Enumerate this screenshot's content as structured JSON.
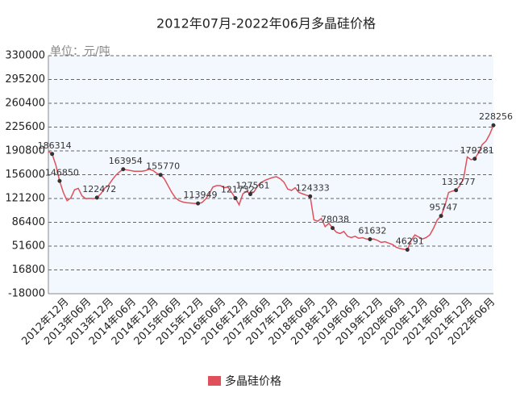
{
  "chart_data": {
    "type": "line",
    "title": "2012年07月-2022年06月多晶硅价格",
    "y_unit": "单位：元/吨",
    "categories": [
      null,
      null,
      null,
      null,
      null,
      "2012年12月",
      null,
      null,
      null,
      null,
      null,
      "2013年06月",
      null,
      null,
      null,
      null,
      null,
      "2013年12月",
      null,
      null,
      null,
      null,
      null,
      "2014年06月",
      null,
      null,
      null,
      null,
      null,
      "2014年12月",
      null,
      null,
      null,
      null,
      null,
      "2015年06月",
      null,
      null,
      null,
      null,
      null,
      "2015年12月",
      null,
      null,
      null,
      null,
      null,
      "2016年06月",
      null,
      null,
      null,
      null,
      null,
      "2016年12月",
      null,
      null,
      null,
      null,
      null,
      "2017年06月",
      null,
      null,
      null,
      null,
      null,
      "2017年12月",
      null,
      null,
      null,
      null,
      null,
      "2018年06月",
      null,
      null,
      null,
      null,
      null,
      "2018年12月",
      null,
      null,
      null,
      null,
      null,
      "2019年06月",
      null,
      null,
      null,
      null,
      null,
      "2019年12月",
      null,
      null,
      null,
      null,
      null,
      "2020年06月",
      null,
      null,
      null,
      null,
      null,
      "2020年12月",
      null,
      null,
      null,
      null,
      null,
      "2021年06月",
      null,
      null,
      null,
      null,
      null,
      "2021年12月",
      null,
      null,
      null,
      null,
      null,
      "2022年06月"
    ],
    "series": [
      {
        "name": "多晶硅价格",
        "color": "#e0505a",
        "values": [
          190000,
          186314,
          170000,
          146850,
          130000,
          118000,
          122000,
          134000,
          136000,
          125000,
          121000,
          121500,
          121000,
          122472,
          128000,
          136000,
          140000,
          148000,
          155000,
          160000,
          163954,
          163000,
          162000,
          161000,
          161000,
          161000,
          162000,
          164000,
          162000,
          158000,
          155770,
          150000,
          140000,
          130000,
          122000,
          118000,
          116000,
          115000,
          114500,
          114000,
          113949,
          115000,
          120000,
          128000,
          138000,
          140000,
          140000,
          137000,
          138000,
          130000,
          121732,
          112000,
          128000,
          132000,
          127561,
          131000,
          140000,
          145000,
          148000,
          150000,
          152000,
          153000,
          150000,
          145000,
          135000,
          133000,
          137000,
          130000,
          128000,
          126000,
          124333,
          90000,
          88000,
          92000,
          80000,
          85000,
          78038,
          72000,
          70000,
          73000,
          66000,
          64000,
          66000,
          63000,
          64000,
          62000,
          61632,
          62000,
          60000,
          57000,
          58000,
          56000,
          54000,
          50000,
          48000,
          47000,
          46291,
          60000,
          68000,
          65000,
          62000,
          64000,
          68000,
          78000,
          90000,
          95747,
          110000,
          130000,
          132000,
          133277,
          140000,
          150000,
          182000,
          178000,
          179281,
          188000,
          200000,
          205000,
          215000,
          228256
        ],
        "value_labels": [
          null,
          186314,
          null,
          146850,
          null,
          null,
          null,
          null,
          null,
          null,
          null,
          null,
          null,
          122472,
          null,
          null,
          null,
          null,
          null,
          null,
          163954,
          null,
          null,
          null,
          null,
          null,
          null,
          null,
          null,
          null,
          155770,
          null,
          null,
          null,
          null,
          null,
          null,
          null,
          null,
          null,
          113949,
          null,
          null,
          null,
          null,
          null,
          null,
          null,
          null,
          null,
          121732,
          null,
          null,
          null,
          127561,
          null,
          null,
          null,
          null,
          null,
          null,
          null,
          null,
          null,
          null,
          null,
          null,
          null,
          null,
          null,
          124333,
          null,
          null,
          null,
          null,
          null,
          78038,
          null,
          null,
          null,
          null,
          null,
          null,
          null,
          null,
          null,
          61632,
          null,
          null,
          null,
          null,
          null,
          null,
          null,
          null,
          null,
          46291,
          null,
          null,
          null,
          null,
          null,
          null,
          null,
          null,
          95747,
          null,
          null,
          null,
          133277,
          null,
          null,
          null,
          null,
          179281,
          null,
          null,
          null,
          null,
          228256
        ]
      }
    ],
    "ylim": [
      -18000,
      330000
    ],
    "yticks": [
      330000,
      295200,
      260400,
      225600,
      190800,
      156000,
      121200,
      86400,
      51600,
      16800,
      -18000
    ],
    "grid": true,
    "legend": "bottom"
  }
}
